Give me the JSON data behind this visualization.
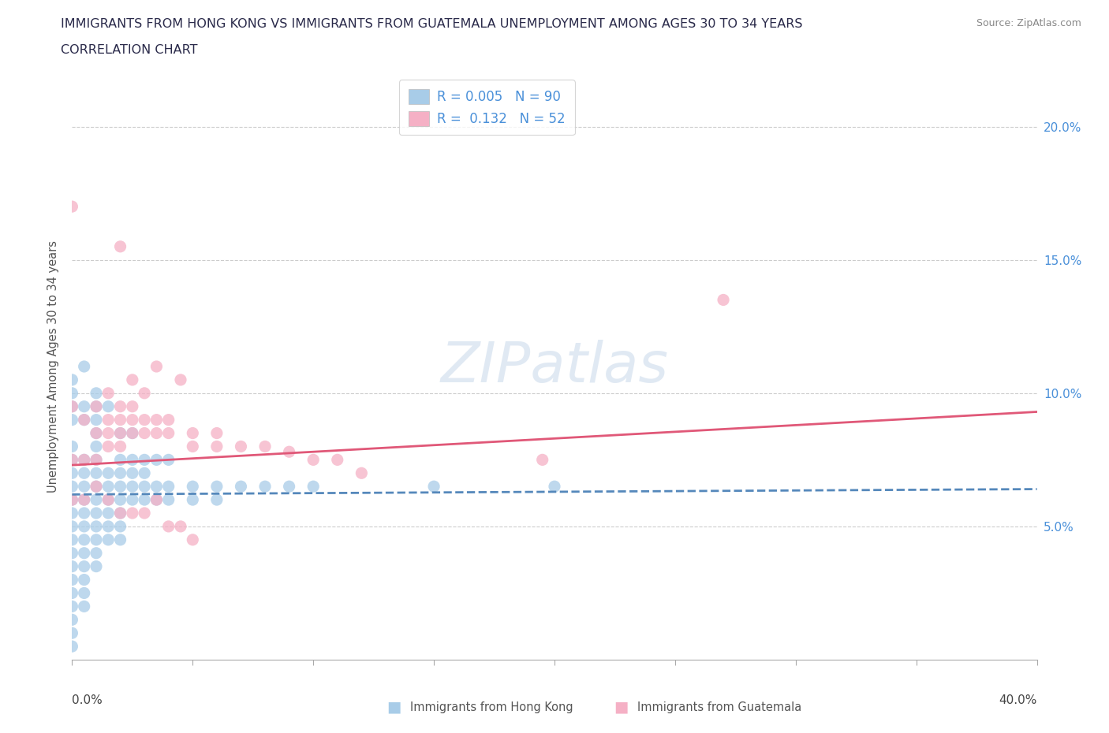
{
  "title_line1": "IMMIGRANTS FROM HONG KONG VS IMMIGRANTS FROM GUATEMALA UNEMPLOYMENT AMONG AGES 30 TO 34 YEARS",
  "title_line2": "CORRELATION CHART",
  "source": "Source: ZipAtlas.com",
  "ylabel": "Unemployment Among Ages 30 to 34 years",
  "xlim": [
    0.0,
    0.4
  ],
  "ylim": [
    0.0,
    0.22
  ],
  "hk_color": "#a8cce8",
  "gt_color": "#f5b0c5",
  "hk_line_color": "#5588bb",
  "gt_line_color": "#e05878",
  "hk_R": 0.005,
  "hk_N": 90,
  "gt_R": 0.132,
  "gt_N": 52,
  "watermark": "ZIPatlas",
  "hk_scatter": [
    [
      0.0,
      0.06
    ],
    [
      0.0,
      0.055
    ],
    [
      0.0,
      0.065
    ],
    [
      0.0,
      0.07
    ],
    [
      0.0,
      0.05
    ],
    [
      0.0,
      0.045
    ],
    [
      0.0,
      0.04
    ],
    [
      0.0,
      0.035
    ],
    [
      0.0,
      0.03
    ],
    [
      0.0,
      0.025
    ],
    [
      0.0,
      0.02
    ],
    [
      0.0,
      0.015
    ],
    [
      0.0,
      0.01
    ],
    [
      0.0,
      0.005
    ],
    [
      0.0,
      0.075
    ],
    [
      0.005,
      0.06
    ],
    [
      0.005,
      0.055
    ],
    [
      0.005,
      0.065
    ],
    [
      0.005,
      0.07
    ],
    [
      0.005,
      0.05
    ],
    [
      0.005,
      0.045
    ],
    [
      0.005,
      0.04
    ],
    [
      0.005,
      0.035
    ],
    [
      0.005,
      0.03
    ],
    [
      0.005,
      0.025
    ],
    [
      0.005,
      0.02
    ],
    [
      0.005,
      0.075
    ],
    [
      0.01,
      0.06
    ],
    [
      0.01,
      0.055
    ],
    [
      0.01,
      0.065
    ],
    [
      0.01,
      0.07
    ],
    [
      0.01,
      0.05
    ],
    [
      0.01,
      0.045
    ],
    [
      0.01,
      0.04
    ],
    [
      0.01,
      0.035
    ],
    [
      0.01,
      0.075
    ],
    [
      0.01,
      0.08
    ],
    [
      0.01,
      0.085
    ],
    [
      0.015,
      0.06
    ],
    [
      0.015,
      0.055
    ],
    [
      0.015,
      0.065
    ],
    [
      0.015,
      0.05
    ],
    [
      0.015,
      0.045
    ],
    [
      0.015,
      0.07
    ],
    [
      0.02,
      0.06
    ],
    [
      0.02,
      0.065
    ],
    [
      0.02,
      0.055
    ],
    [
      0.02,
      0.07
    ],
    [
      0.02,
      0.05
    ],
    [
      0.02,
      0.045
    ],
    [
      0.025,
      0.06
    ],
    [
      0.025,
      0.065
    ],
    [
      0.025,
      0.07
    ],
    [
      0.03,
      0.06
    ],
    [
      0.03,
      0.065
    ],
    [
      0.03,
      0.07
    ],
    [
      0.035,
      0.06
    ],
    [
      0.035,
      0.065
    ],
    [
      0.04,
      0.06
    ],
    [
      0.04,
      0.065
    ],
    [
      0.05,
      0.06
    ],
    [
      0.06,
      0.06
    ],
    [
      0.0,
      0.09
    ],
    [
      0.0,
      0.095
    ],
    [
      0.0,
      0.1
    ],
    [
      0.005,
      0.09
    ],
    [
      0.005,
      0.095
    ],
    [
      0.01,
      0.09
    ],
    [
      0.015,
      0.095
    ],
    [
      0.005,
      0.11
    ],
    [
      0.0,
      0.105
    ],
    [
      0.02,
      0.085
    ],
    [
      0.025,
      0.085
    ],
    [
      0.0,
      0.08
    ],
    [
      0.01,
      0.095
    ],
    [
      0.01,
      0.1
    ],
    [
      0.02,
      0.075
    ],
    [
      0.025,
      0.075
    ],
    [
      0.03,
      0.075
    ],
    [
      0.035,
      0.075
    ],
    [
      0.04,
      0.075
    ],
    [
      0.05,
      0.065
    ],
    [
      0.06,
      0.065
    ],
    [
      0.07,
      0.065
    ],
    [
      0.08,
      0.065
    ],
    [
      0.09,
      0.065
    ],
    [
      0.1,
      0.065
    ],
    [
      0.15,
      0.065
    ],
    [
      0.2,
      0.065
    ]
  ],
  "gt_scatter": [
    [
      0.0,
      0.17
    ],
    [
      0.02,
      0.155
    ],
    [
      0.025,
      0.105
    ],
    [
      0.03,
      0.1
    ],
    [
      0.035,
      0.11
    ],
    [
      0.04,
      0.09
    ],
    [
      0.045,
      0.105
    ],
    [
      0.0,
      0.095
    ],
    [
      0.005,
      0.09
    ],
    [
      0.01,
      0.085
    ],
    [
      0.01,
      0.095
    ],
    [
      0.015,
      0.085
    ],
    [
      0.015,
      0.09
    ],
    [
      0.015,
      0.1
    ],
    [
      0.02,
      0.085
    ],
    [
      0.02,
      0.09
    ],
    [
      0.02,
      0.095
    ],
    [
      0.025,
      0.085
    ],
    [
      0.025,
      0.09
    ],
    [
      0.025,
      0.095
    ],
    [
      0.03,
      0.085
    ],
    [
      0.03,
      0.09
    ],
    [
      0.035,
      0.085
    ],
    [
      0.035,
      0.09
    ],
    [
      0.04,
      0.085
    ],
    [
      0.05,
      0.08
    ],
    [
      0.05,
      0.085
    ],
    [
      0.06,
      0.08
    ],
    [
      0.06,
      0.085
    ],
    [
      0.07,
      0.08
    ],
    [
      0.08,
      0.08
    ],
    [
      0.09,
      0.078
    ],
    [
      0.1,
      0.075
    ],
    [
      0.11,
      0.075
    ],
    [
      0.0,
      0.075
    ],
    [
      0.005,
      0.075
    ],
    [
      0.01,
      0.075
    ],
    [
      0.015,
      0.08
    ],
    [
      0.02,
      0.08
    ],
    [
      0.0,
      0.06
    ],
    [
      0.005,
      0.06
    ],
    [
      0.01,
      0.065
    ],
    [
      0.015,
      0.06
    ],
    [
      0.02,
      0.055
    ],
    [
      0.025,
      0.055
    ],
    [
      0.03,
      0.055
    ],
    [
      0.035,
      0.06
    ],
    [
      0.04,
      0.05
    ],
    [
      0.045,
      0.05
    ],
    [
      0.05,
      0.045
    ],
    [
      0.12,
      0.07
    ],
    [
      0.195,
      0.075
    ],
    [
      0.27,
      0.135
    ]
  ]
}
